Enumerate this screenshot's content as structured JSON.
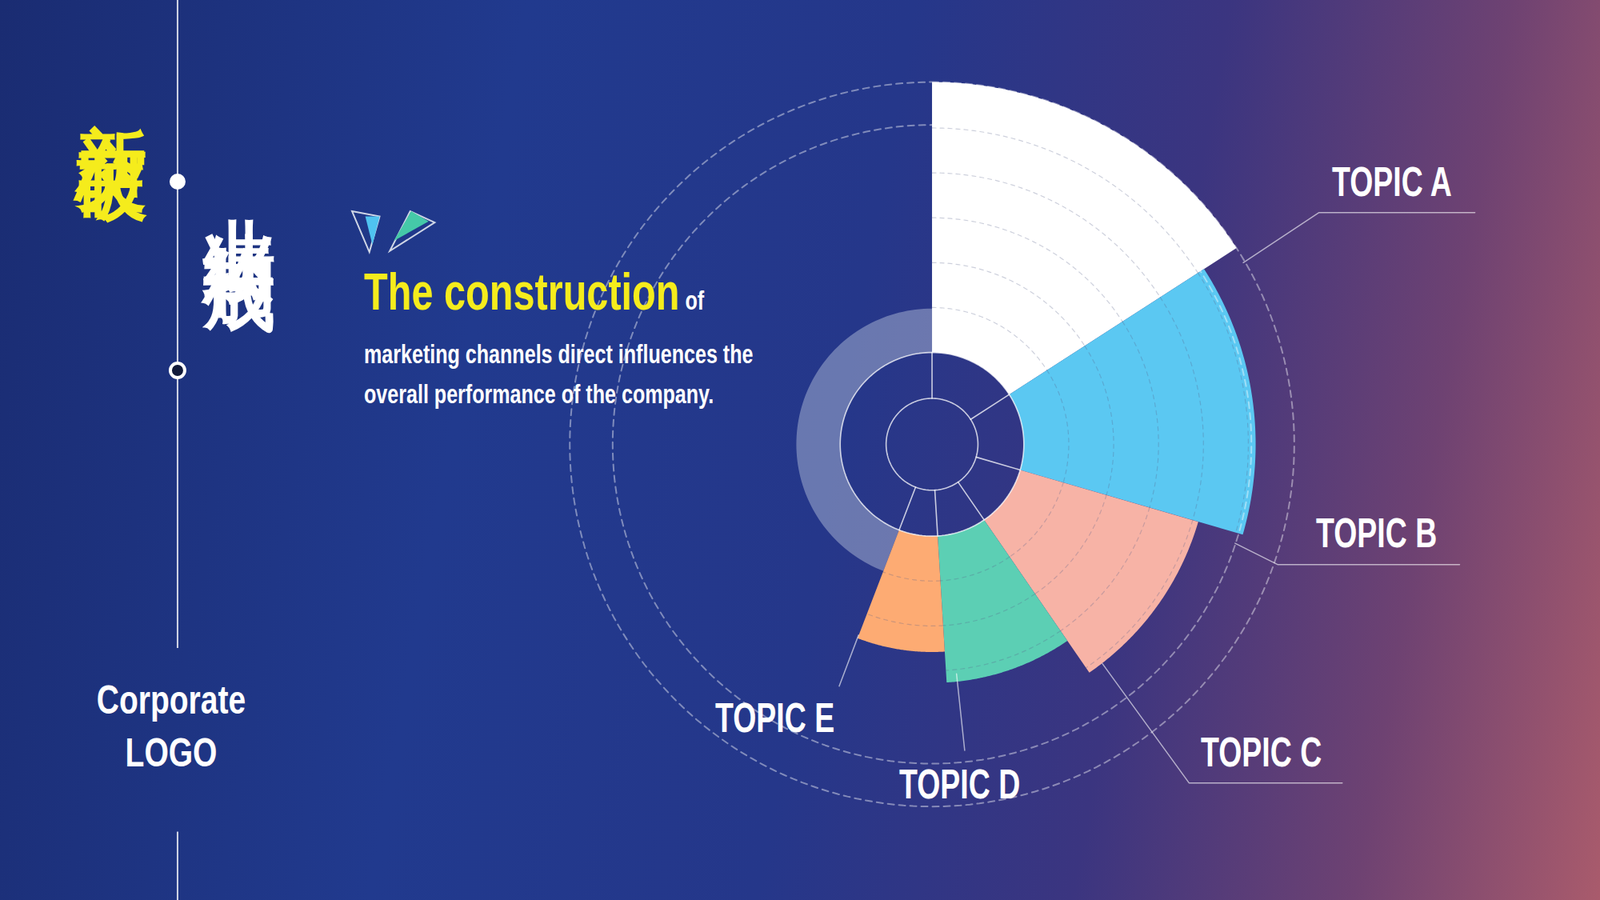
{
  "chart_data": {
    "type": "rose",
    "title": "新突破",
    "subtitle": "业绩构成",
    "annotations": [
      "The construction",
      "of",
      "marketing channels direct influences the overall performance of the company.",
      "Corporate LOGO"
    ],
    "categories": [
      "TOPIC A",
      "TOPIC B",
      "TOPIC C",
      "TOPIC D",
      "TOPIC E"
    ],
    "values": [
      35,
      30,
      24,
      19,
      15
    ],
    "colors": [
      "#ffffff",
      "#5bc8f2",
      "#f7b3a6",
      "#5ccfb4",
      "#fdab73"
    ],
    "tick_labels": false,
    "data_labels": false
  }
}
